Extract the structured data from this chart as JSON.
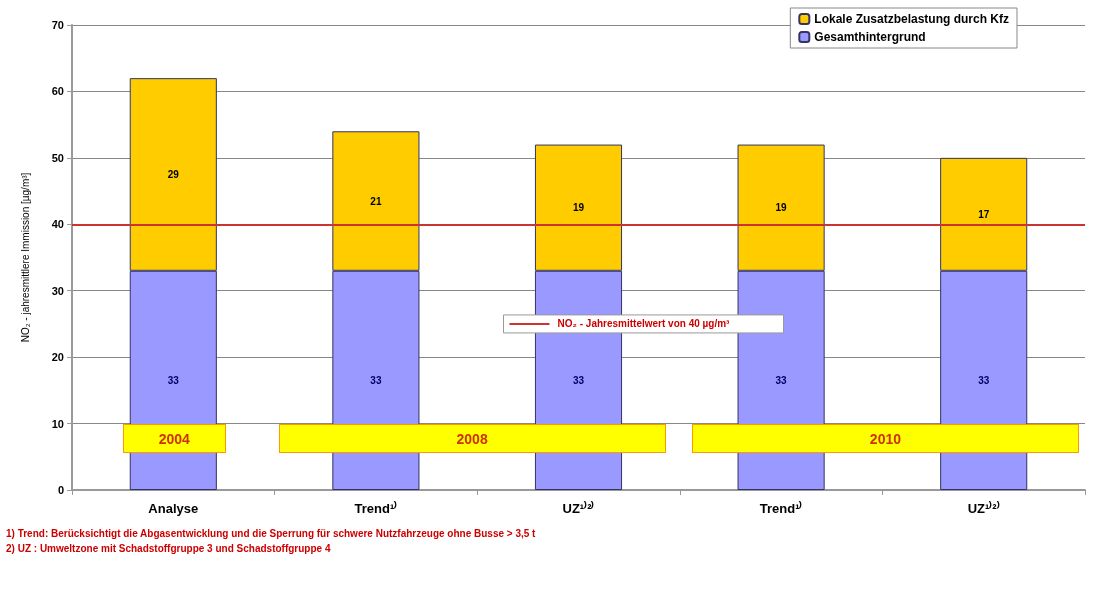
{
  "chart_data": {
    "type": "bar",
    "stacked": true,
    "ylabel": "NO₂ - jahresmittlere Immission [µg/m³]",
    "categories": [
      "Analyse",
      "Trend¹⁾",
      "UZ¹⁾²⁾",
      "Trend¹⁾",
      "UZ¹⁾²⁾"
    ],
    "series": [
      {
        "name": "Gesamthintergrund",
        "color": "#9999ff",
        "values": [
          33,
          33,
          33,
          33,
          33
        ]
      },
      {
        "name": "Lokale Zusatzbelastung durch Kfz",
        "color": "#ffcc00",
        "values": [
          29,
          21,
          19,
          19,
          17
        ]
      }
    ],
    "data_labels": true,
    "ylim": [
      0,
      70
    ],
    "yticks": [
      0,
      10,
      20,
      30,
      40,
      50,
      60,
      70
    ],
    "grid": "y",
    "legend": "top right",
    "ref_lines": [
      {
        "axis": "y",
        "value": 40,
        "label": "NO₂ - Jahresmittelwert von 40 µg/m³",
        "color": "#cc3333"
      }
    ],
    "annotations": [
      "2004",
      "2008",
      "2010",
      "1) Trend: Berücksichtigt die Abgasentwicklung und die Sperrung für schwere Nutzfahrzeuge ohne Busse > 3,5 t",
      "2) UZ : Umweltzone mit Schadstoffgruppe 3 und Schadstoffgruppe 4"
    ]
  }
}
